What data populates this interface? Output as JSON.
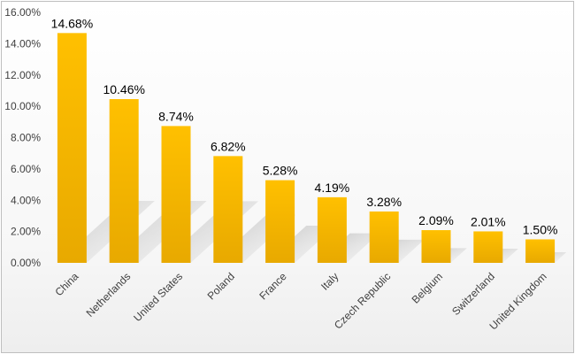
{
  "chart_data": {
    "type": "bar",
    "title": "",
    "xlabel": "",
    "ylabel": "",
    "categories": [
      "China",
      "Netherlands",
      "United States",
      "Poland",
      "France",
      "Italy",
      "Czech Republic",
      "Belgium",
      "Switzerland",
      "United Kingdom"
    ],
    "values": [
      14.68,
      10.46,
      8.74,
      6.82,
      5.28,
      4.19,
      3.28,
      2.09,
      2.01,
      1.5
    ],
    "data_labels": [
      "14.68%",
      "10.46%",
      "8.74%",
      "6.82%",
      "5.28%",
      "4.19%",
      "3.28%",
      "2.09%",
      "2.01%",
      "1.50%"
    ],
    "y_ticks": [
      "0.00%",
      "2.00%",
      "4.00%",
      "6.00%",
      "8.00%",
      "10.00%",
      "12.00%",
      "14.00%",
      "16.00%"
    ],
    "ylim": [
      0,
      16
    ],
    "grid": false,
    "legend": "none",
    "bar_color": "#FFC000",
    "bar_color_dark": "#E6A800"
  }
}
